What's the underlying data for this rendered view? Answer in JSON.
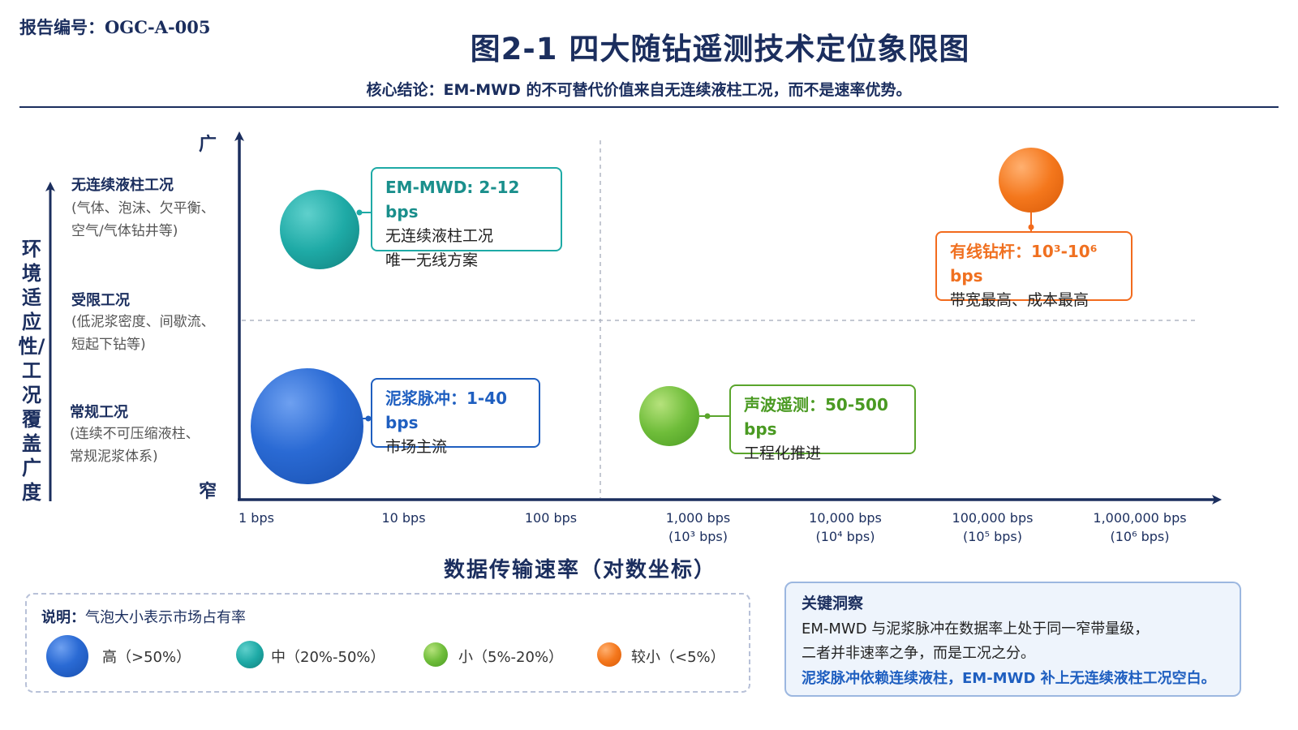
{
  "header": {
    "report_id": "报告编号：OGC-A-005",
    "title": "图2-1  四大随钻遥测技术定位象限图",
    "subtitle": "核心结论：EM-MWD 的不可替代价值来自无连续液柱工况，而不是速率优势。"
  },
  "chart_data": {
    "type": "scatter",
    "title": "图2-1  四大随钻遥测技术定位象限图",
    "xlabel": "数据传输速率（对数坐标）",
    "ylabel": "环境适应性/工况覆盖广度",
    "x_scale": "log",
    "xlim": [
      1,
      1000000
    ],
    "x_ticks": [
      {
        "value": 1,
        "label": "1 bps",
        "sub": ""
      },
      {
        "value": 10,
        "label": "10 bps",
        "sub": ""
      },
      {
        "value": 100,
        "label": "100 bps",
        "sub": ""
      },
      {
        "value": 1000,
        "label": "1,000 bps",
        "sub": "(10³ bps)"
      },
      {
        "value": 10000,
        "label": "10,000 bps",
        "sub": "(10⁴ bps)"
      },
      {
        "value": 100000,
        "label": "100,000 bps",
        "sub": "(10⁵ bps)"
      },
      {
        "value": 1000000,
        "label": "1,000,000 bps",
        "sub": "(10⁶ bps)"
      }
    ],
    "y_end_labels": {
      "top": "广",
      "bottom": "窄"
    },
    "y_categories": [
      {
        "title": "无连续液柱工况",
        "desc": [
          "(气体、泡沫、欠平衡、",
          "空气/气体钻井等)"
        ]
      },
      {
        "title": "受限工况",
        "desc": [
          "(低泥浆密度、间歇流、",
          "短起下钻等)"
        ]
      },
      {
        "title": "常规工况",
        "desc": [
          "(连续不可压缩液柱、",
          "常规泥浆体系)"
        ]
      }
    ],
    "grid": "quadrant dashed lines",
    "legend_position": "bottom-left",
    "series": [
      {
        "name": "EM-MWD",
        "rate_bps": [
          2,
          12
        ],
        "coverage": "无连续液柱工况",
        "market_share": "中",
        "color": "#1eaaa6",
        "label_title": "EM-MWD: 2-12 bps",
        "label_lines": [
          "无连续液柱工况",
          "唯一无线方案"
        ]
      },
      {
        "name": "泥浆脉冲",
        "rate_bps": [
          1,
          40
        ],
        "coverage": "常规工况",
        "market_share": "高",
        "color": "#1f5fc0",
        "label_title": "泥浆脉冲：1-40 bps",
        "label_lines": [
          "市场主流"
        ]
      },
      {
        "name": "声波遥测",
        "rate_bps": [
          50,
          500
        ],
        "coverage": "常规工况",
        "market_share": "小",
        "color": "#5aa52c",
        "label_title": "声波遥测：50-500 bps",
        "label_lines": [
          "工程化推进"
        ]
      },
      {
        "name": "有线钻杆",
        "rate_bps": [
          1000,
          1000000
        ],
        "coverage": "无连续液柱工况",
        "market_share": "较小",
        "color": "#f26b1d",
        "label_title": "有线钻杆：10³-10⁶ bps",
        "label_lines": [
          "带宽最高、成本最高"
        ]
      }
    ]
  },
  "legend": {
    "title_bold": "说明：",
    "title_rest": "气泡大小表示市场占有率",
    "items": [
      {
        "label": "高（>50%）",
        "color": "#1f5fc0"
      },
      {
        "label": "中（20%-50%）",
        "color": "#1eaaa6"
      },
      {
        "label": "小（5%-20%）",
        "color": "#5aa52c"
      },
      {
        "label": "较小（<5%）",
        "color": "#f26b1d"
      }
    ]
  },
  "insight": {
    "title": "关键洞察",
    "line1": "EM-MWD 与泥浆脉冲在数据率上处于同一窄带量级，",
    "line2": "二者并非速率之争，而是工况之分。",
    "line3": "泥浆脉冲依赖连续液柱，EM-MWD 补上无连续液柱工况空白。"
  },
  "colors": {
    "navy": "#1b2e5e",
    "teal_text": "#1a8f8c",
    "blue_text": "#1f5fc0",
    "green_text": "#4a9a22",
    "orange_text": "#f07020",
    "link_blue": "#1f5fc0"
  }
}
